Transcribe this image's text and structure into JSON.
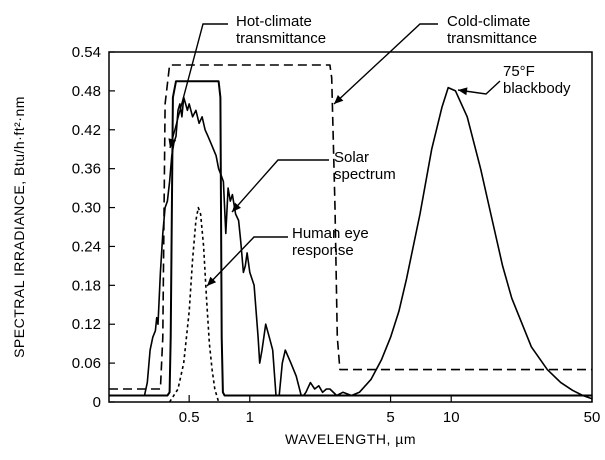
{
  "chart_data": {
    "type": "line",
    "title": "",
    "xlabel": "WAVELENGTH, µm",
    "ylabel": "SPECTRAL IRRADIANCE, Btu/h·ft²·nm",
    "x_scale": "log",
    "xlim": [
      0.2,
      50
    ],
    "ylim": [
      0,
      0.54
    ],
    "grid": false,
    "legend": "none",
    "x_ticks": [
      0.5,
      1,
      5,
      10,
      50
    ],
    "x_tick_labels": [
      "0.5",
      "1",
      "5",
      "10",
      "50"
    ],
    "y_ticks": [
      0,
      0.06,
      0.12,
      0.18,
      0.24,
      0.3,
      0.36,
      0.42,
      0.48,
      0.54
    ],
    "y_tick_labels": [
      "0",
      "0.06",
      "0.12",
      "0.18",
      "0.24",
      "0.30",
      "0.36",
      "0.42",
      "0.48",
      "0.54"
    ],
    "series": [
      {
        "key": "solar",
        "style": "solid",
        "x": [
          0.2,
          0.27,
          0.3,
          0.31,
          0.32,
          0.33,
          0.34,
          0.345,
          0.35,
          0.355,
          0.36,
          0.37,
          0.38,
          0.39,
          0.4,
          0.41,
          0.42,
          0.43,
          0.44,
          0.45,
          0.46,
          0.47,
          0.48,
          0.49,
          0.5,
          0.52,
          0.54,
          0.56,
          0.58,
          0.6,
          0.62,
          0.64,
          0.66,
          0.68,
          0.7,
          0.72,
          0.74,
          0.76,
          0.78,
          0.8,
          0.82,
          0.85,
          0.88,
          0.9,
          0.93,
          0.95,
          0.97,
          1.0,
          1.05,
          1.1,
          1.12,
          1.15,
          1.2,
          1.25,
          1.3,
          1.35,
          1.4,
          1.45,
          1.5,
          1.55,
          1.6,
          1.7,
          1.8,
          1.85,
          1.9,
          2.0,
          2.1,
          2.2,
          2.3,
          2.4,
          2.5,
          2.7,
          2.9,
          3.2,
          40
        ],
        "y": [
          0.01,
          0.01,
          0.01,
          0.03,
          0.08,
          0.1,
          0.11,
          0.13,
          0.12,
          0.16,
          0.2,
          0.26,
          0.3,
          0.31,
          0.34,
          0.38,
          0.4,
          0.41,
          0.45,
          0.46,
          0.44,
          0.47,
          0.46,
          0.45,
          0.46,
          0.44,
          0.45,
          0.43,
          0.44,
          0.42,
          0.41,
          0.4,
          0.39,
          0.38,
          0.36,
          0.35,
          0.34,
          0.26,
          0.33,
          0.31,
          0.32,
          0.29,
          0.28,
          0.25,
          0.2,
          0.21,
          0.23,
          0.2,
          0.18,
          0.1,
          0.06,
          0.08,
          0.12,
          0.1,
          0.08,
          0.01,
          0.01,
          0.06,
          0.08,
          0.07,
          0.06,
          0.04,
          0.01,
          0.01,
          0.015,
          0.03,
          0.02,
          0.025,
          0.015,
          0.02,
          0.02,
          0.01,
          0.015,
          0.01,
          0.01
        ]
      },
      {
        "key": "eye",
        "style": "dotted",
        "x": [
          0.4,
          0.44,
          0.47,
          0.5,
          0.52,
          0.54,
          0.555,
          0.57,
          0.59,
          0.61,
          0.63,
          0.65,
          0.67,
          0.7
        ],
        "y": [
          0.0,
          0.02,
          0.06,
          0.14,
          0.22,
          0.28,
          0.3,
          0.29,
          0.24,
          0.16,
          0.09,
          0.05,
          0.02,
          0.0
        ]
      },
      {
        "key": "hot",
        "style": "solid",
        "x": [
          0.2,
          0.39,
          0.4,
          0.405,
          0.415,
          0.43,
          0.7,
          0.715,
          0.725,
          0.735,
          0.75,
          50
        ],
        "y": [
          0.01,
          0.01,
          0.015,
          0.1,
          0.47,
          0.495,
          0.495,
          0.47,
          0.1,
          0.015,
          0.01,
          0.01
        ]
      },
      {
        "key": "cold",
        "style": "dashed",
        "x": [
          0.2,
          0.36,
          0.37,
          0.38,
          0.4,
          2.5,
          2.55,
          2.65,
          2.72,
          2.8,
          50
        ],
        "y": [
          0.02,
          0.02,
          0.1,
          0.46,
          0.52,
          0.52,
          0.5,
          0.3,
          0.1,
          0.05,
          0.05
        ]
      },
      {
        "key": "blackbody",
        "style": "solid",
        "x": [
          3.2,
          3.5,
          4,
          4.5,
          5,
          5.5,
          6,
          7,
          8,
          9,
          9.66,
          10.5,
          12,
          14,
          16,
          18,
          20,
          25,
          30,
          35,
          40,
          45,
          50
        ],
        "y": [
          0.01,
          0.015,
          0.035,
          0.065,
          0.1,
          0.14,
          0.19,
          0.29,
          0.39,
          0.455,
          0.485,
          0.48,
          0.44,
          0.36,
          0.28,
          0.21,
          0.16,
          0.085,
          0.05,
          0.03,
          0.018,
          0.01,
          0.005
        ]
      }
    ],
    "annotations": [
      {
        "key": "hot",
        "lines": [
          "Hot-climate",
          "transmittance"
        ]
      },
      {
        "key": "cold",
        "lines": [
          "Cold-climate",
          "transmittance"
        ]
      },
      {
        "key": "blackbody",
        "lines": [
          "75°F",
          "blackbody"
        ]
      },
      {
        "key": "solar",
        "lines": [
          "Solar",
          "spectrum"
        ]
      },
      {
        "key": "eye",
        "lines": [
          "Human eye",
          "response"
        ]
      }
    ]
  }
}
